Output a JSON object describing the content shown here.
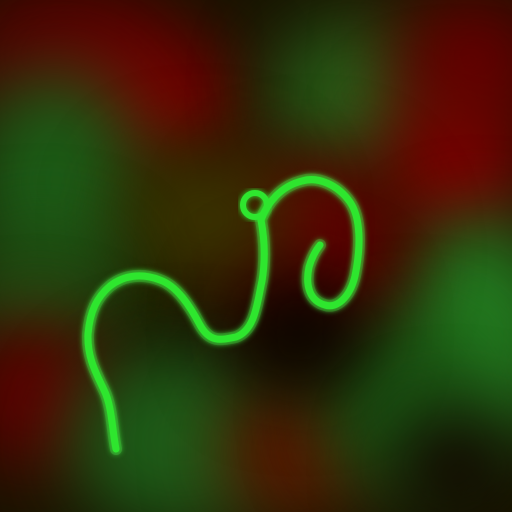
{
  "scene": {
    "background_colors": {
      "dark_base": "#181400",
      "deep_red": "#6e0000",
      "forest_green": "#1f6a1a",
      "olive": "#3d3a00",
      "shadow": "#050500"
    },
    "trail": {
      "color": "#2ee62e",
      "glow_color": "#58ff58",
      "description_icon": "snake-trail"
    }
  }
}
